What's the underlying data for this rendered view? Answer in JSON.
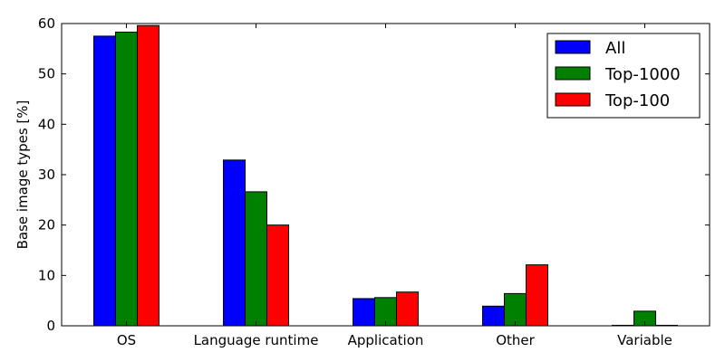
{
  "chart_data": {
    "type": "bar",
    "categories": [
      "OS",
      "Language runtime",
      "Application",
      "Other",
      "Variable"
    ],
    "series": [
      {
        "name": "All",
        "color": "#0000ff",
        "values": [
          57.5,
          32.9,
          5.4,
          3.9,
          0.1
        ]
      },
      {
        "name": "Top-1000",
        "color": "#008000",
        "values": [
          58.3,
          26.6,
          5.6,
          6.4,
          2.9
        ]
      },
      {
        "name": "Top-100",
        "color": "#ff0000",
        "values": [
          59.6,
          20.0,
          6.7,
          12.1,
          0.1
        ]
      }
    ],
    "ylabel": "Base image types [%]",
    "xlabel": "",
    "ylim": [
      0,
      60
    ],
    "yticks": [
      0,
      10,
      20,
      30,
      40,
      50,
      60
    ],
    "legend": "top-right",
    "grid": false
  }
}
